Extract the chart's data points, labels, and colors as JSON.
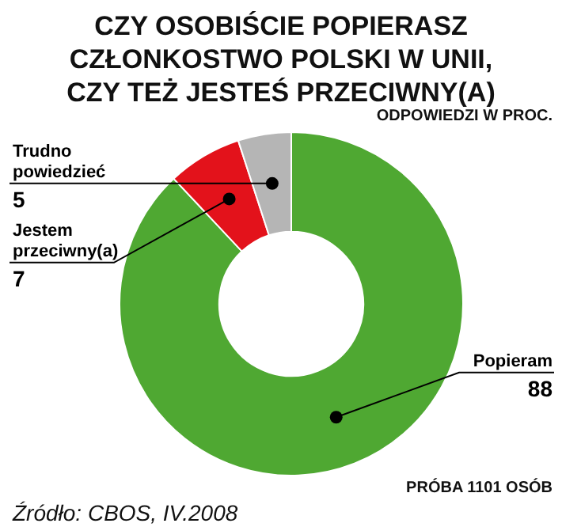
{
  "chart_data": {
    "type": "donut",
    "title": "CZY OSOBIŚCIE POPIERASZ\nCZŁONKOSTWO POLSKI W UNII,\nCZY TEŻ JESTEŚ PRZECIWNY(A)",
    "categories": [
      "Popieram",
      "Jestem przeciwny(a)",
      "Trudno powiedzieć"
    ],
    "values": [
      88,
      7,
      5
    ],
    "colors": [
      "#4fa832",
      "#e3121b",
      "#b5b5b5"
    ],
    "data_labels": true,
    "legend": false,
    "annotations": [
      "ODPOWIEDZI W PROC.",
      "PRÓBA 1101 OSÓB",
      "Źródło: CBOS, IV.2008"
    ]
  }
}
